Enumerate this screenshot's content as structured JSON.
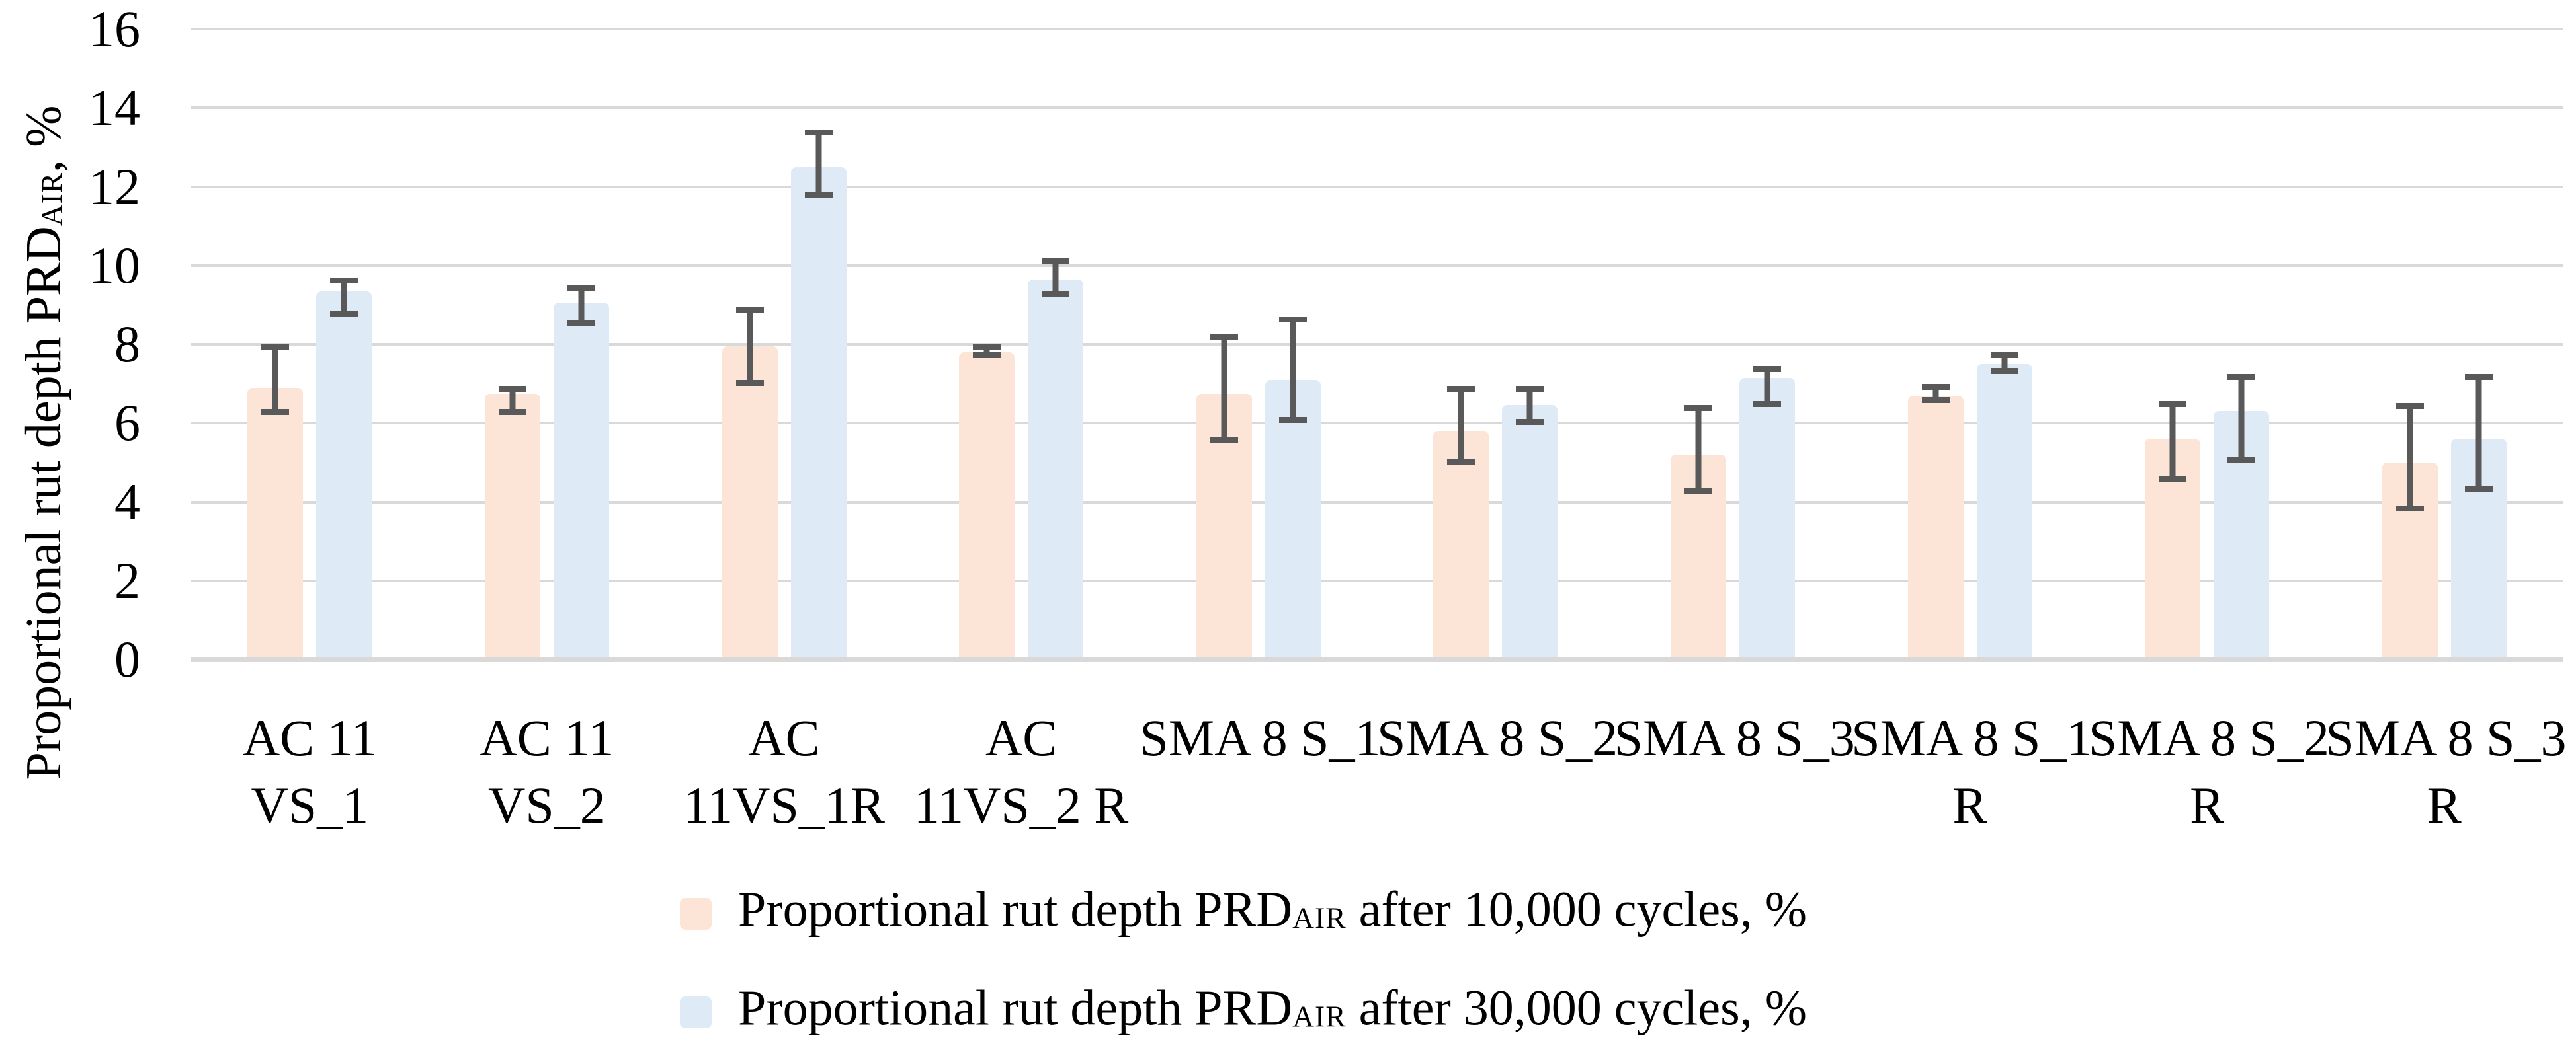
{
  "chart_data": {
    "type": "bar",
    "title": "",
    "ylabel": {
      "prefix": "Proportional rut depth PRD",
      "sub": "AIR",
      "suffix": ", %"
    },
    "xlabel": "",
    "ylim": [
      0,
      16
    ],
    "ytick_step": 2,
    "yticks": [
      16,
      14,
      12,
      10,
      8,
      6,
      4,
      2,
      0
    ],
    "grid": true,
    "legend_position": "bottom",
    "categories": [
      [
        "AC 11",
        "VS_1"
      ],
      [
        "AC 11",
        "VS_2"
      ],
      [
        "AC",
        "11VS_1R"
      ],
      [
        "AC",
        "11VS_2 R"
      ],
      [
        "SMA 8 S_1"
      ],
      [
        "SMA 8 S_2"
      ],
      [
        "SMA 8 S_3"
      ],
      [
        "SMA 8 S_1",
        "R"
      ],
      [
        "SMA 8 S_2",
        "R"
      ],
      [
        "SMA 8 S_3",
        "R"
      ]
    ],
    "series": [
      {
        "name": {
          "prefix": "Proportional rut depth PRD",
          "sub": "AIR",
          "suffix": " after 10,000 cycles, %"
        },
        "color": "#FCE4D6",
        "values": [
          6.9,
          6.75,
          7.95,
          7.8,
          6.75,
          5.8,
          5.2,
          6.7,
          5.6,
          5.0
        ],
        "error_low": [
          6.2,
          6.2,
          6.95,
          7.65,
          5.5,
          4.95,
          4.2,
          6.5,
          4.5,
          3.75
        ],
        "error_high": [
          8.0,
          6.95,
          8.95,
          8.0,
          8.25,
          6.95,
          6.45,
          7.0,
          6.55,
          6.5
        ]
      },
      {
        "name": {
          "prefix": "Proportional rut depth PRD",
          "sub": "AIR",
          "suffix": " after 30,000 cycles, %"
        },
        "color": "#DEEBF7",
        "values": [
          9.35,
          9.05,
          12.5,
          9.65,
          7.1,
          6.45,
          7.15,
          7.5,
          6.3,
          5.6
        ],
        "error_low": [
          8.7,
          8.45,
          11.7,
          9.2,
          6.0,
          5.95,
          6.4,
          7.25,
          5.0,
          4.25
        ],
        "error_high": [
          9.7,
          9.5,
          13.45,
          10.2,
          8.7,
          6.95,
          7.45,
          7.8,
          7.25,
          7.25
        ]
      }
    ],
    "colors": {
      "gridline": "#D9D9D9",
      "error_bar": "#595959",
      "text": "#000000"
    }
  }
}
